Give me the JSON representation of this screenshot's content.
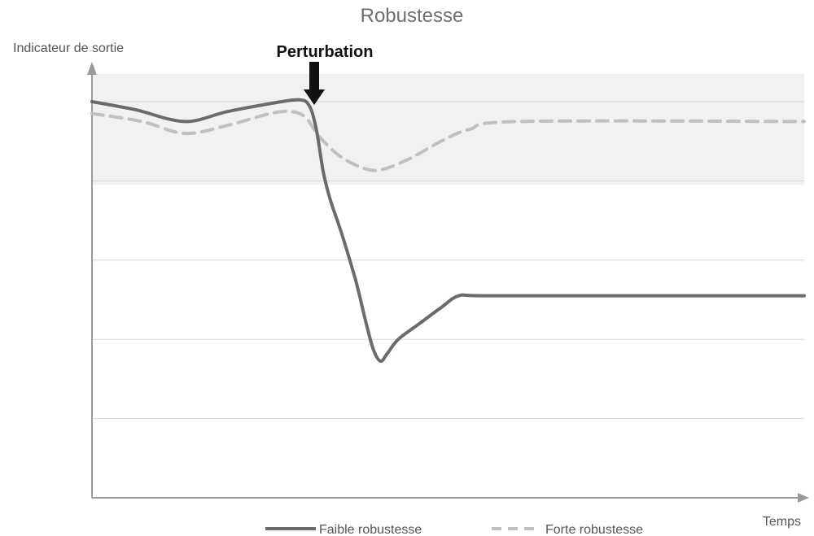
{
  "chart_data": {
    "type": "line",
    "title": "Robustesse",
    "xlabel": "Temps",
    "ylabel": "Indicateur de sortie",
    "xlim": [
      0,
      100
    ],
    "ylim": [
      0,
      100
    ],
    "grid": true,
    "legend_position": "bottom",
    "tolerance_band": {
      "low": 79,
      "high": 107,
      "color": "#f1f1f1"
    },
    "gridlines": [
      20,
      40,
      60,
      80,
      100
    ],
    "annotation": {
      "text": "Perturbation",
      "x": 31.2
    },
    "series": [
      {
        "name": "Faible robustesse",
        "style": "solid",
        "color": "#6b6b6b",
        "points": [
          [
            0,
            100
          ],
          [
            6,
            98
          ],
          [
            13,
            95
          ],
          [
            19,
            97.5
          ],
          [
            25,
            99.5
          ],
          [
            29,
            100.5
          ],
          [
            30.5,
            99
          ],
          [
            31.5,
            93
          ],
          [
            32.5,
            82
          ],
          [
            33.5,
            75
          ],
          [
            35,
            67
          ],
          [
            37,
            55
          ],
          [
            38.5,
            44
          ],
          [
            39.5,
            37.5
          ],
          [
            40.5,
            34.5
          ],
          [
            41.5,
            36.5
          ],
          [
            43,
            40
          ],
          [
            46,
            44
          ],
          [
            49,
            48
          ],
          [
            51.5,
            51
          ],
          [
            55,
            51
          ],
          [
            75,
            51
          ],
          [
            100,
            51
          ]
        ]
      },
      {
        "name": "Forte robustesse",
        "style": "dashed",
        "color": "#c0c0c0",
        "points": [
          [
            0,
            97
          ],
          [
            7,
            95
          ],
          [
            13,
            92
          ],
          [
            19,
            94
          ],
          [
            25,
            97
          ],
          [
            28,
            97.5
          ],
          [
            30,
            96
          ],
          [
            32,
            91
          ],
          [
            35,
            86
          ],
          [
            38.5,
            83
          ],
          [
            41,
            83
          ],
          [
            45,
            86
          ],
          [
            49,
            90
          ],
          [
            53,
            93
          ],
          [
            60,
            95
          ],
          [
            100,
            95
          ]
        ]
      }
    ]
  }
}
